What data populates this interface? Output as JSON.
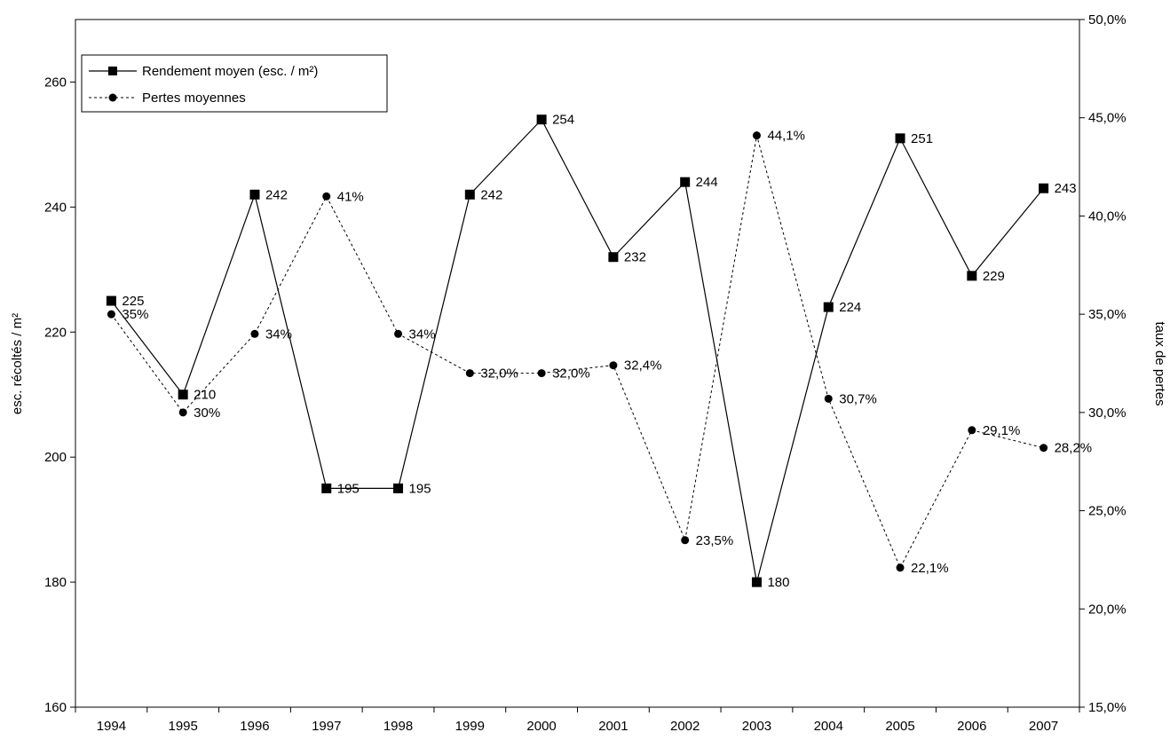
{
  "chart_data": {
    "type": "line",
    "x": [
      "1994",
      "1995",
      "1996",
      "1997",
      "1998",
      "1999",
      "2000",
      "2001",
      "2002",
      "2003",
      "2004",
      "2005",
      "2006",
      "2007"
    ],
    "left_axis": {
      "label": "esc. récoltés / m²",
      "ylim": [
        160,
        270
      ],
      "ticks": [
        160,
        180,
        200,
        220,
        240,
        260
      ],
      "tick_labels": [
        "160",
        "180",
        "200",
        "220",
        "240",
        "260"
      ]
    },
    "right_axis": {
      "label": "taux de pertes",
      "ylim": [
        0.15,
        0.5
      ],
      "ticks": [
        0.15,
        0.2,
        0.25,
        0.3,
        0.35,
        0.4,
        0.45,
        0.5
      ],
      "tick_labels": [
        "15,0%",
        "20,0%",
        "25,0%",
        "30,0%",
        "35,0%",
        "40,0%",
        "45,0%",
        "50,0%"
      ]
    },
    "series": [
      {
        "name": "Rendement moyen (esc. / m²)",
        "axis": "left",
        "style": "solid",
        "marker": "square",
        "values": [
          225,
          210,
          242,
          195,
          195,
          242,
          254,
          232,
          244,
          180,
          224,
          251,
          229,
          243
        ],
        "labels": [
          "225",
          "210",
          "242",
          "195",
          "195",
          "242",
          "254",
          "232",
          "244",
          "180",
          "224",
          "251",
          "229",
          "243"
        ]
      },
      {
        "name": "Pertes moyennes",
        "axis": "right",
        "style": "dashed",
        "marker": "circle",
        "values": [
          0.35,
          0.3,
          0.34,
          0.41,
          0.34,
          0.32,
          0.32,
          0.324,
          0.235,
          0.441,
          0.307,
          0.221,
          0.291,
          0.282
        ],
        "labels": [
          "35%",
          "30%",
          "34%",
          "41%",
          "34%",
          "32,0%",
          "32,0%",
          "32,4%",
          "23,5%",
          "44,1%",
          "30,7%",
          "22,1%",
          "29,1%",
          "28,2%"
        ]
      }
    ],
    "grid": false,
    "legend_position": "top-left",
    "colors": {
      "line": "#000000",
      "background": "#ffffff"
    }
  }
}
